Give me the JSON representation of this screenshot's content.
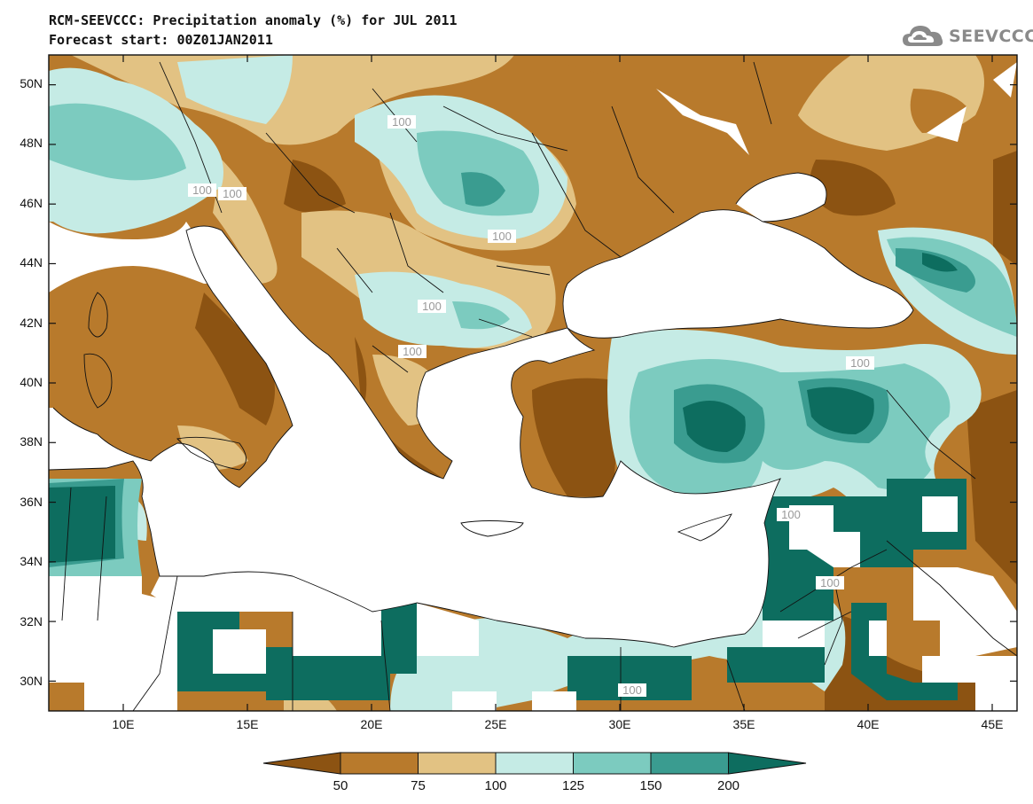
{
  "header": {
    "title": "RCM-SEEVCCC: Precipitation anomaly (%) for JUL 2011",
    "subtitle": "Forecast start: 00Z01JAN2011"
  },
  "logo": {
    "text": "SEEVCCC",
    "icon": "cloud-logo-icon"
  },
  "map": {
    "lon_range": [
      7,
      46
    ],
    "lat_range": [
      29,
      51
    ],
    "lon_ticks": [
      "10E",
      "15E",
      "20E",
      "25E",
      "30E",
      "35E",
      "40E",
      "45E"
    ],
    "lat_ticks": [
      "50N",
      "48N",
      "46N",
      "44N",
      "42N",
      "40N",
      "38N",
      "36N",
      "34N",
      "32N",
      "30N"
    ],
    "contour_labels": [
      "100",
      "100",
      "100",
      "100",
      "100",
      "100",
      "100",
      "100",
      "100",
      "100"
    ]
  },
  "colorbar": {
    "labels": [
      "50",
      "75",
      "100",
      "125",
      "150",
      "200"
    ],
    "colors": [
      "#8c5312",
      "#b87a2c",
      "#e2c283",
      "#c5ebe5",
      "#7ccbbf",
      "#3a9c90",
      "#0d6d5f"
    ]
  }
}
